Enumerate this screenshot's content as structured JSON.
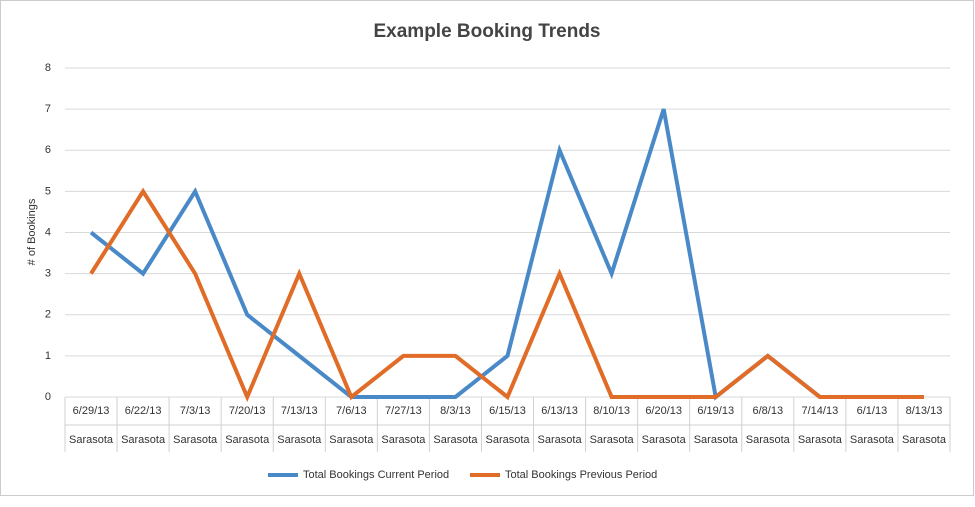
{
  "chart_data": {
    "type": "line",
    "title": "Example Booking Trends",
    "y_label": "# of Bookings",
    "categories": [
      "6/29/13",
      "6/22/13",
      "7/3/13",
      "7/20/13",
      "7/13/13",
      "7/6/13",
      "7/27/13",
      "8/3/13",
      "6/15/13",
      "6/13/13",
      "8/10/13",
      "6/20/13",
      "6/19/13",
      "6/8/13",
      "7/14/13",
      "6/1/13",
      "8/13/13"
    ],
    "category_groups": [
      "Sarasota",
      "Sarasota",
      "Sarasota",
      "Sarasota",
      "Sarasota",
      "Sarasota",
      "Sarasota",
      "Sarasota",
      "Sarasota",
      "Sarasota",
      "Sarasota",
      "Sarasota",
      "Sarasota",
      "Sarasota",
      "Sarasota",
      "Sarasota",
      "Sarasota"
    ],
    "series": [
      {
        "name": "Total Bookings Current Period",
        "color": "#4a89c8",
        "values": [
          4,
          3,
          5,
          2,
          1,
          0,
          0,
          0,
          1,
          6,
          3,
          7,
          0,
          1,
          0,
          0,
          0
        ]
      },
      {
        "name": "Total Bookings Previous Period",
        "color": "#e06c28",
        "values": [
          3,
          5,
          3,
          0,
          3,
          0,
          1,
          1,
          0,
          3,
          0,
          0,
          0,
          1,
          0,
          0,
          0
        ]
      }
    ],
    "ylim": [
      0,
      8
    ],
    "yticks": [
      0,
      1,
      2,
      3,
      4,
      5,
      6,
      7,
      8
    ],
    "grid": true,
    "legend": "bottom"
  }
}
